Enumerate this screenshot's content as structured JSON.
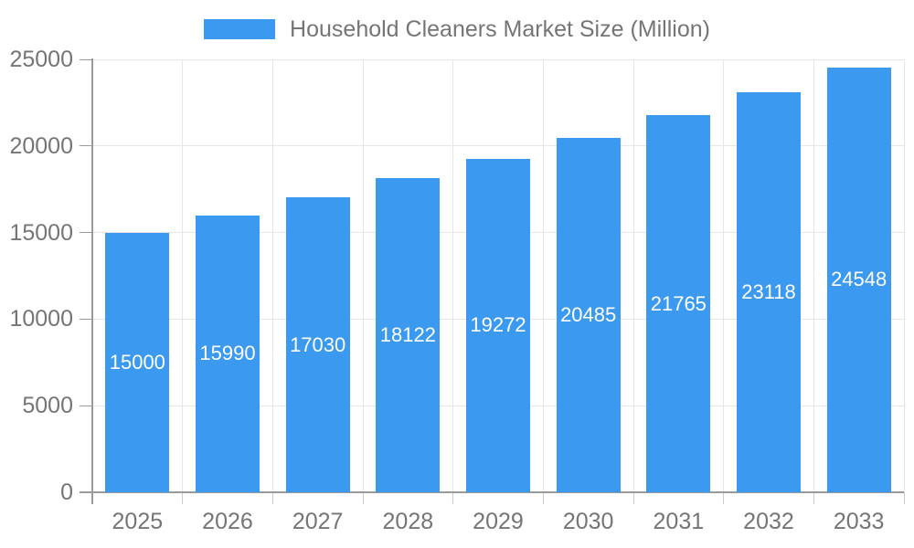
{
  "chart_data": {
    "type": "bar",
    "title": "Household Cleaners Market Size (Million)",
    "categories": [
      "2025",
      "2026",
      "2027",
      "2028",
      "2029",
      "2030",
      "2031",
      "2032",
      "2033"
    ],
    "values": [
      15000,
      15990,
      17030,
      18122,
      19272,
      20485,
      21765,
      23118,
      24548
    ],
    "series": [
      {
        "name": "Household Cleaners Market Size (Million)",
        "values": [
          15000,
          15990,
          17030,
          18122,
          19272,
          20485,
          21765,
          23118,
          24548
        ]
      }
    ],
    "xlabel": "",
    "ylabel": "",
    "ylim": [
      0,
      25000
    ],
    "yticks": [
      0,
      5000,
      10000,
      15000,
      20000,
      25000
    ],
    "grid": true,
    "legend_position": "top",
    "colors": {
      "bar": "#3B99EF",
      "gridline": "#e6e6e6",
      "axis_line": "#9a9a9a",
      "boundary_tick": "#cccccc",
      "axis_text": "#757575",
      "value_text": "#ffffff"
    }
  }
}
